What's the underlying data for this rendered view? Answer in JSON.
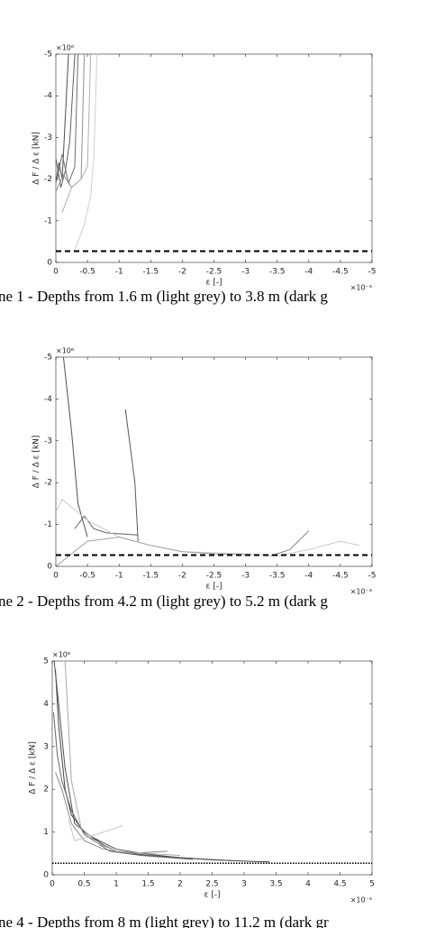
{
  "chart_data": [
    {
      "type": "line",
      "caption": "ne 1 - Depths from 1.6 m (light grey) to 3.8 m (dark g",
      "xlabel": "ε [-]",
      "ylabel": "Δ F / Δ ε [kN]",
      "x_exponent": "×10⁻³",
      "y_exponent": "×10⁶",
      "xlim": [
        0,
        -5
      ],
      "ylim": [
        0,
        -5
      ],
      "xticks": [
        0,
        -0.5,
        -1,
        -1.5,
        -2,
        -2.5,
        -3,
        -3.5,
        -4,
        -4.5,
        -5
      ],
      "yticks": [
        0,
        -1,
        -2,
        -3,
        -4,
        -5
      ],
      "reference_line": {
        "value": -0.27,
        "style": "dashed"
      },
      "series": [
        {
          "color": "#505050",
          "x": [
            0,
            -0.05,
            -0.1,
            -0.15,
            -0.2
          ],
          "values": [
            -1.9,
            -2.4,
            -2.0,
            -3.5,
            -5
          ]
        },
        {
          "color": "#606060",
          "x": [
            0,
            -0.08,
            -0.15,
            -0.22,
            -0.3
          ],
          "values": [
            -2.5,
            -1.8,
            -2.2,
            -2.9,
            -5
          ]
        },
        {
          "color": "#707070",
          "x": [
            -0.02,
            -0.1,
            -0.2,
            -0.3,
            -0.35
          ],
          "values": [
            -2.0,
            -2.6,
            -1.9,
            -2.3,
            -5
          ]
        },
        {
          "color": "#909090",
          "x": [
            0,
            -0.12,
            -0.25,
            -0.4,
            -0.45
          ],
          "values": [
            -1.7,
            -2.1,
            -1.8,
            -2.0,
            -5
          ]
        },
        {
          "color": "#b0b0b0",
          "x": [
            -0.1,
            -0.25,
            -0.4,
            -0.5,
            -0.55
          ],
          "values": [
            -1.2,
            -1.8,
            -2.0,
            -2.3,
            -5
          ]
        },
        {
          "color": "#d0d0d0",
          "x": [
            -0.3,
            -0.45,
            -0.55,
            -0.6,
            -0.65
          ],
          "values": [
            -0.3,
            -0.9,
            -1.6,
            -2.5,
            -5
          ]
        }
      ]
    },
    {
      "type": "line",
      "caption": "ne 2 - Depths from 4.2 m (light grey) to 5.2 m (dark g",
      "xlabel": "ε [-]",
      "ylabel": "Δ F / Δ ε [kN]",
      "x_exponent": "×10⁻³",
      "y_exponent": "×10⁶",
      "xlim": [
        0,
        -5
      ],
      "ylim": [
        0,
        -5
      ],
      "xticks": [
        0,
        -0.5,
        -1,
        -1.5,
        -2,
        -2.5,
        -3,
        -3.5,
        -4,
        -4.5,
        -5
      ],
      "yticks": [
        0,
        -1,
        -2,
        -3,
        -4,
        -5
      ],
      "reference_line": {
        "value": -0.27,
        "style": "dashed"
      },
      "series": [
        {
          "color": "#505050",
          "x": [
            -0.12,
            -0.25,
            -0.35,
            -0.5
          ],
          "values": [
            -5,
            -3.2,
            -1.5,
            -0.7
          ]
        },
        {
          "color": "#606060",
          "x": [
            -0.3,
            -0.45,
            -0.6,
            -0.8,
            -1.3
          ],
          "values": [
            -0.9,
            -1.2,
            -0.9,
            -0.8,
            -0.75
          ]
        },
        {
          "color": "#585858",
          "x": [
            -1.1,
            -1.25,
            -1.3
          ],
          "values": [
            -3.75,
            -2.0,
            -0.6
          ]
        },
        {
          "color": "#c8c8c8",
          "x": [
            0,
            -0.1,
            -0.5,
            -1.0,
            -1.5,
            -2.0,
            -3.0,
            -3.5,
            -4.0,
            -4.5,
            -4.8
          ],
          "values": [
            -1.3,
            -1.6,
            -1.1,
            -0.7,
            -0.5,
            -0.35,
            -0.3,
            -0.25,
            -0.4,
            -0.6,
            -0.5
          ]
        },
        {
          "color": "#808080",
          "x": [
            -3.4,
            -3.7,
            -4.0
          ],
          "values": [
            -0.25,
            -0.4,
            -0.85
          ]
        },
        {
          "color": "#a0a0a0",
          "x": [
            0,
            -0.5,
            -1.0,
            -1.5,
            -2.0,
            -2.5,
            -3.0
          ],
          "values": [
            0,
            -0.6,
            -0.7,
            -0.5,
            -0.35,
            -0.3,
            -0.28
          ]
        }
      ]
    },
    {
      "type": "line",
      "caption": "ne 4 - Depths from 8 m (light grey) to 11.2 m (dark gr",
      "xlabel": "ε [-]",
      "ylabel": "Δ F / Δ ε [kN]",
      "x_exponent": "×10⁻³",
      "y_exponent": "×10⁶",
      "xlim": [
        0,
        5
      ],
      "ylim": [
        0,
        5
      ],
      "xticks": [
        0,
        0.5,
        1,
        1.5,
        2,
        2.5,
        3,
        3.5,
        4,
        4.5,
        5
      ],
      "yticks": [
        0,
        1,
        2,
        3,
        4,
        5
      ],
      "reference_line": {
        "value": 0.27,
        "style": "dotted"
      },
      "series": [
        {
          "color": "#404040",
          "x": [
            0.05,
            0.1,
            0.2,
            0.3,
            0.5,
            0.8,
            1,
            1.5,
            2,
            2.5,
            3,
            3.4
          ],
          "values": [
            4.8,
            3.5,
            2.0,
            1.4,
            1.0,
            0.7,
            0.55,
            0.45,
            0.4,
            0.35,
            0.32,
            0.3
          ]
        },
        {
          "color": "#505050",
          "x": [
            0.03,
            0.1,
            0.2,
            0.35,
            0.6,
            1,
            1.5,
            2,
            2.8
          ],
          "values": [
            5,
            4.0,
            2.5,
            1.2,
            0.9,
            0.6,
            0.48,
            0.4,
            0.33
          ]
        },
        {
          "color": "#666666",
          "x": [
            0.02,
            0.08,
            0.15,
            0.3,
            0.5,
            0.9,
            1.4,
            2.2
          ],
          "values": [
            3.8,
            2.8,
            2.2,
            1.5,
            0.95,
            0.55,
            0.45,
            0.36
          ]
        },
        {
          "color": "#888888",
          "x": [
            0.05,
            0.15,
            0.3,
            0.5,
            0.8,
            1.2,
            1.8
          ],
          "values": [
            2.4,
            2.0,
            1.2,
            0.8,
            0.6,
            0.5,
            0.55
          ]
        },
        {
          "color": "#aaaaaa",
          "x": [
            0.2,
            0.3,
            0.45,
            0.7,
            1.0,
            1.5,
            2.0
          ],
          "values": [
            5,
            2.2,
            1.1,
            0.75,
            0.55,
            0.5,
            0.45
          ]
        },
        {
          "color": "#c8c8c8",
          "x": [
            0.25,
            0.35,
            0.6,
            0.8,
            1.1
          ],
          "values": [
            1.3,
            0.8,
            0.9,
            1.0,
            1.15
          ]
        }
      ]
    }
  ]
}
